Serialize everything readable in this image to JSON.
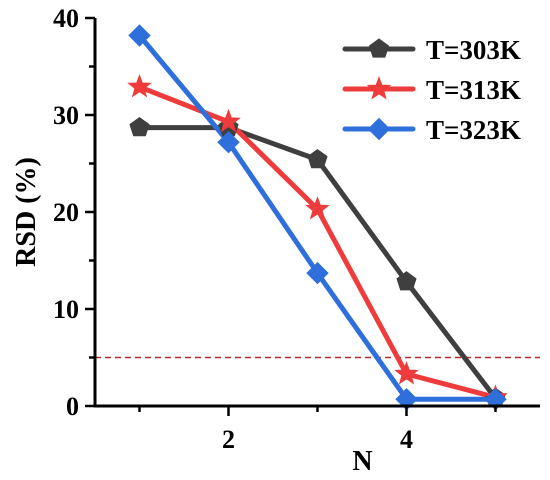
{
  "chart_data": {
    "type": "line",
    "title": "",
    "xlabel": "N",
    "ylabel": "RSD (%)",
    "x": [
      1,
      2,
      3,
      4,
      5
    ],
    "xticks": [
      2,
      4
    ],
    "xtick_labels": [
      "2",
      "4"
    ],
    "xlim": [
      0.5,
      5.5
    ],
    "yticks": [
      0,
      10,
      20,
      30,
      40
    ],
    "ytick_labels": [
      "0",
      "10",
      "20",
      "30",
      "40"
    ],
    "ylim": [
      0,
      40
    ],
    "grid": false,
    "legend_position": "top-right",
    "reference_line": {
      "y": 5,
      "style": "dashed",
      "color": "#b03030"
    },
    "series": [
      {
        "name": "T=303K",
        "color": "#3f3f3f",
        "marker": "pentagon-icon",
        "values": [
          28.7,
          28.7,
          25.4,
          12.8,
          0.8
        ]
      },
      {
        "name": "T=313K",
        "color": "#ee3b3b",
        "marker": "star-icon",
        "values": [
          32.9,
          29.3,
          20.3,
          3.3,
          0.9
        ]
      },
      {
        "name": "T=323K",
        "color": "#2f6fdb",
        "marker": "diamond-icon",
        "values": [
          38.2,
          27.2,
          13.7,
          0.7,
          0.7
        ]
      }
    ]
  }
}
